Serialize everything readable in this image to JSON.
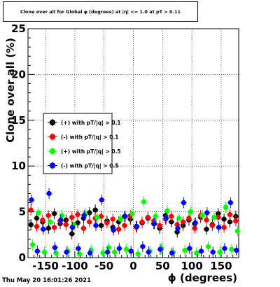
{
  "title": "Clone  over all for Global φ (degrees) at |η| <= 1.0 at pT > 0.11",
  "timestamp": "Thu May 20 16:01:26 2021",
  "chart_data": {
    "type": "scatter",
    "xlabel": "ϕ (degrees)",
    "ylabel": "Clone  over all (%)",
    "xlim": [
      -180,
      180
    ],
    "ylim": [
      0,
      25
    ],
    "xticks": [
      -150,
      -100,
      -50,
      0,
      50,
      100,
      150
    ],
    "yticks": [
      0,
      5,
      10,
      15,
      20,
      25
    ],
    "grid": true,
    "legend_position": "left-middle",
    "series": [
      {
        "name": "(+) with pT/|q| > 0.1",
        "color": "#000000",
        "x": [
          -175,
          -165,
          -155,
          -145,
          -135,
          -125,
          -115,
          -105,
          -95,
          -85,
          -75,
          -65,
          -55,
          -45,
          -35,
          -25,
          -15,
          -5,
          5,
          15,
          25,
          35,
          45,
          55,
          65,
          75,
          85,
          95,
          105,
          115,
          125,
          135,
          145,
          155,
          165,
          175
        ],
        "y": [
          3.6,
          4.3,
          3.9,
          3.2,
          4.8,
          3.7,
          4.1,
          2.6,
          3.8,
          4.3,
          4.9,
          5.2,
          3.5,
          4.0,
          3.3,
          3.9,
          4.5,
          4.2,
          3.4,
          3.8,
          4.3,
          3.7,
          3.2,
          4.6,
          3.9,
          2.8,
          3.5,
          4.1,
          3.7,
          4.4,
          3.1,
          3.6,
          4.8,
          4.2,
          3.9,
          4.5
        ],
        "yerr": [
          0.6,
          0.6,
          0.6,
          0.6,
          0.6,
          0.6,
          0.6,
          0.6,
          0.6,
          0.6,
          0.6,
          0.6,
          0.6,
          0.6,
          0.6,
          0.6,
          0.6,
          0.6,
          0.6,
          0.6,
          0.6,
          0.6,
          0.6,
          0.6,
          0.6,
          0.6,
          0.6,
          0.6,
          0.6,
          0.6,
          0.6,
          0.6,
          0.6,
          0.6,
          0.6,
          0.6
        ]
      },
      {
        "name": "(-) with pT/|q| > 0.1",
        "color": "#ff0000",
        "x": [
          -175,
          -165,
          -155,
          -145,
          -135,
          -125,
          -115,
          -105,
          -95,
          -85,
          -75,
          -65,
          -55,
          -45,
          -35,
          -25,
          -15,
          -5,
          5,
          15,
          25,
          35,
          45,
          55,
          65,
          75,
          85,
          95,
          105,
          115,
          125,
          135,
          145,
          155,
          165,
          175
        ],
        "y": [
          5.2,
          3.4,
          4.1,
          4.6,
          3.3,
          4.0,
          3.6,
          4.4,
          4.7,
          3.2,
          3.9,
          4.3,
          4.5,
          3.8,
          4.2,
          3.1,
          3.5,
          4.6,
          3.3,
          3.9,
          4.4,
          4.0,
          3.5,
          4.2,
          4.5,
          3.6,
          3.9,
          4.3,
          3.2,
          4.6,
          4.1,
          3.5,
          4.4,
          3.3,
          4.7,
          4.0
        ],
        "yerr": [
          0.6,
          0.6,
          0.6,
          0.6,
          0.6,
          0.6,
          0.6,
          0.6,
          0.6,
          0.6,
          0.6,
          0.6,
          0.6,
          0.6,
          0.6,
          0.6,
          0.6,
          0.6,
          0.6,
          0.6,
          0.6,
          0.6,
          0.6,
          0.6,
          0.6,
          0.6,
          0.6,
          0.6,
          0.6,
          0.6,
          0.6,
          0.6,
          0.6,
          0.6,
          0.6,
          0.6
        ]
      },
      {
        "name": "(+) with pT/|q| > 0.5",
        "color": "#00ff00",
        "x": [
          -172,
          -162,
          -152,
          -142,
          -132,
          -122,
          -112,
          -102,
          -92,
          -82,
          -72,
          -62,
          -52,
          -42,
          -32,
          -22,
          -12,
          -2,
          8,
          18,
          28,
          38,
          48,
          58,
          68,
          78,
          88,
          98,
          108,
          118,
          128,
          138,
          148,
          158,
          168,
          178
        ],
        "y": [
          1.4,
          4.9,
          0.6,
          3.9,
          0.5,
          4.6,
          0.7,
          3.6,
          0.4,
          4.8,
          0.8,
          4.4,
          0.5,
          1.1,
          0.6,
          4.2,
          0.9,
          4.8,
          0.4,
          6.1,
          0.7,
          4.5,
          1.0,
          5.1,
          0.6,
          4.3,
          0.8,
          5.0,
          0.5,
          4.6,
          1.2,
          4.4,
          0.6,
          5.5,
          0.9,
          2.9
        ],
        "yerr": [
          0.6,
          0.6,
          0.6,
          0.6,
          0.6,
          0.6,
          0.6,
          0.6,
          0.6,
          0.6,
          0.6,
          0.6,
          0.6,
          0.6,
          0.6,
          0.6,
          0.6,
          0.6,
          0.6,
          0.6,
          0.6,
          0.6,
          0.6,
          0.6,
          0.6,
          0.6,
          0.6,
          0.6,
          0.6,
          0.6,
          0.6,
          0.6,
          0.6,
          0.6,
          0.6,
          0.6
        ]
      },
      {
        "name": "(-) with pT/|q| > 0.5",
        "color": "#0000ff",
        "x": [
          -174,
          -164,
          -154,
          -144,
          -134,
          -124,
          -114,
          -104,
          -94,
          -84,
          -74,
          -64,
          -54,
          -44,
          -34,
          -24,
          -14,
          -4,
          6,
          16,
          26,
          36,
          46,
          56,
          66,
          76,
          86,
          96,
          106,
          116,
          126,
          136,
          146,
          156,
          166,
          176
        ],
        "y": [
          6.3,
          0.7,
          3.1,
          7.0,
          1.1,
          4.1,
          0.6,
          3.3,
          1.0,
          4.6,
          0.5,
          3.5,
          6.3,
          0.6,
          3.0,
          1.0,
          4.5,
          0.7,
          3.4,
          1.2,
          0.6,
          3.7,
          0.9,
          4.3,
          0.5,
          3.2,
          6.0,
          1.0,
          3.8,
          0.7,
          4.9,
          0.6,
          3.3,
          1.0,
          6.0,
          0.8
        ],
        "yerr": [
          0.6,
          0.6,
          0.6,
          0.6,
          0.6,
          0.6,
          0.6,
          0.6,
          0.6,
          0.6,
          0.6,
          0.6,
          0.6,
          0.6,
          0.6,
          0.6,
          0.6,
          0.6,
          0.6,
          0.6,
          0.6,
          0.6,
          0.6,
          0.6,
          0.6,
          0.6,
          0.6,
          0.6,
          0.6,
          0.6,
          0.6,
          0.6,
          0.6,
          0.6,
          0.6,
          0.6
        ]
      }
    ]
  }
}
